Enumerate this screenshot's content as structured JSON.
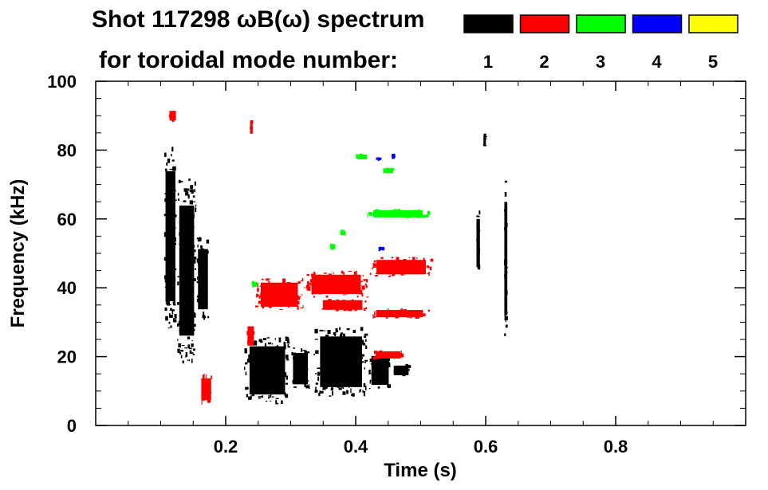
{
  "chart_data": {
    "type": "heatmap",
    "title_line1": "Shot 117298 ωB(ω) spectrum",
    "title_line2": "for toroidal mode number:",
    "xlabel": "Time (s)",
    "ylabel": "Frequency (kHz)",
    "xlim": [
      0.0,
      1.0
    ],
    "ylim": [
      0,
      100
    ],
    "x_ticks": [
      {
        "value": 0.2,
        "label": "0.2"
      },
      {
        "value": 0.4,
        "label": "0.4"
      },
      {
        "value": 0.6,
        "label": "0.6"
      },
      {
        "value": 0.8,
        "label": "0.8"
      }
    ],
    "y_ticks": [
      {
        "value": 0,
        "label": "0"
      },
      {
        "value": 20,
        "label": "20"
      },
      {
        "value": 40,
        "label": "40"
      },
      {
        "value": 60,
        "label": "60"
      },
      {
        "value": 80,
        "label": "80"
      },
      {
        "value": 100,
        "label": "100"
      }
    ],
    "legend": [
      {
        "mode": "1",
        "color": "#000000"
      },
      {
        "mode": "2",
        "color": "#ff0000"
      },
      {
        "mode": "3",
        "color": "#00ff00"
      },
      {
        "mode": "4",
        "color": "#0000ff"
      },
      {
        "mode": "5",
        "color": "#ffff00"
      }
    ],
    "regions": [
      {
        "mode": "1",
        "t0": 0.105,
        "t1": 0.125,
        "f0": 28,
        "f1": 82
      },
      {
        "mode": "1",
        "t0": 0.125,
        "t1": 0.155,
        "f0": 18,
        "f1": 72
      },
      {
        "mode": "1",
        "t0": 0.155,
        "t1": 0.175,
        "f0": 30,
        "f1": 55
      },
      {
        "mode": "1",
        "t0": 0.228,
        "t1": 0.3,
        "f0": 6,
        "f1": 26
      },
      {
        "mode": "1",
        "t0": 0.3,
        "t1": 0.33,
        "f0": 10,
        "f1": 23
      },
      {
        "mode": "1",
        "t0": 0.335,
        "t1": 0.42,
        "f0": 8,
        "f1": 29
      },
      {
        "mode": "1",
        "t0": 0.42,
        "t1": 0.455,
        "f0": 10,
        "f1": 22
      },
      {
        "mode": "1",
        "t0": 0.455,
        "t1": 0.485,
        "f0": 14,
        "f1": 18
      },
      {
        "mode": "1",
        "t0": 0.585,
        "t1": 0.592,
        "f0": 43,
        "f1": 63
      },
      {
        "mode": "1",
        "t0": 0.628,
        "t1": 0.634,
        "f0": 25,
        "f1": 72
      },
      {
        "mode": "1",
        "t0": 0.596,
        "t1": 0.601,
        "f0": 81,
        "f1": 85
      },
      {
        "mode": "2",
        "t0": 0.112,
        "t1": 0.125,
        "f0": 88,
        "f1": 92
      },
      {
        "mode": "2",
        "t0": 0.232,
        "t1": 0.245,
        "f0": 22,
        "f1": 30
      },
      {
        "mode": "2",
        "t0": 0.245,
        "t1": 0.32,
        "f0": 33,
        "f1": 43
      },
      {
        "mode": "2",
        "t0": 0.32,
        "t1": 0.42,
        "f0": 37,
        "f1": 45
      },
      {
        "mode": "2",
        "t0": 0.42,
        "t1": 0.52,
        "f0": 43,
        "f1": 49
      },
      {
        "mode": "2",
        "t0": 0.34,
        "t1": 0.42,
        "f0": 33,
        "f1": 37
      },
      {
        "mode": "2",
        "t0": 0.42,
        "t1": 0.515,
        "f0": 31,
        "f1": 34
      },
      {
        "mode": "2",
        "t0": 0.425,
        "t1": 0.475,
        "f0": 19,
        "f1": 22
      },
      {
        "mode": "2",
        "t0": 0.16,
        "t1": 0.18,
        "f0": 6,
        "f1": 15
      },
      {
        "mode": "2",
        "t0": 0.237,
        "t1": 0.242,
        "f0": 84,
        "f1": 89
      },
      {
        "mode": "3",
        "t0": 0.4,
        "t1": 0.42,
        "f0": 77,
        "f1": 79
      },
      {
        "mode": "3",
        "t0": 0.44,
        "t1": 0.46,
        "f0": 73,
        "f1": 75
      },
      {
        "mode": "3",
        "t0": 0.415,
        "t1": 0.515,
        "f0": 60,
        "f1": 63
      },
      {
        "mode": "3",
        "t0": 0.375,
        "t1": 0.385,
        "f0": 55,
        "f1": 57
      },
      {
        "mode": "3",
        "t0": 0.36,
        "t1": 0.37,
        "f0": 51,
        "f1": 53
      },
      {
        "mode": "3",
        "t0": 0.24,
        "t1": 0.25,
        "f0": 40,
        "f1": 42
      },
      {
        "mode": "4",
        "t0": 0.43,
        "t1": 0.44,
        "f0": 77,
        "f1": 78
      },
      {
        "mode": "4",
        "t0": 0.455,
        "t1": 0.46,
        "f0": 78,
        "f1": 79
      },
      {
        "mode": "4",
        "t0": 0.435,
        "t1": 0.445,
        "f0": 51,
        "f1": 52
      }
    ]
  }
}
